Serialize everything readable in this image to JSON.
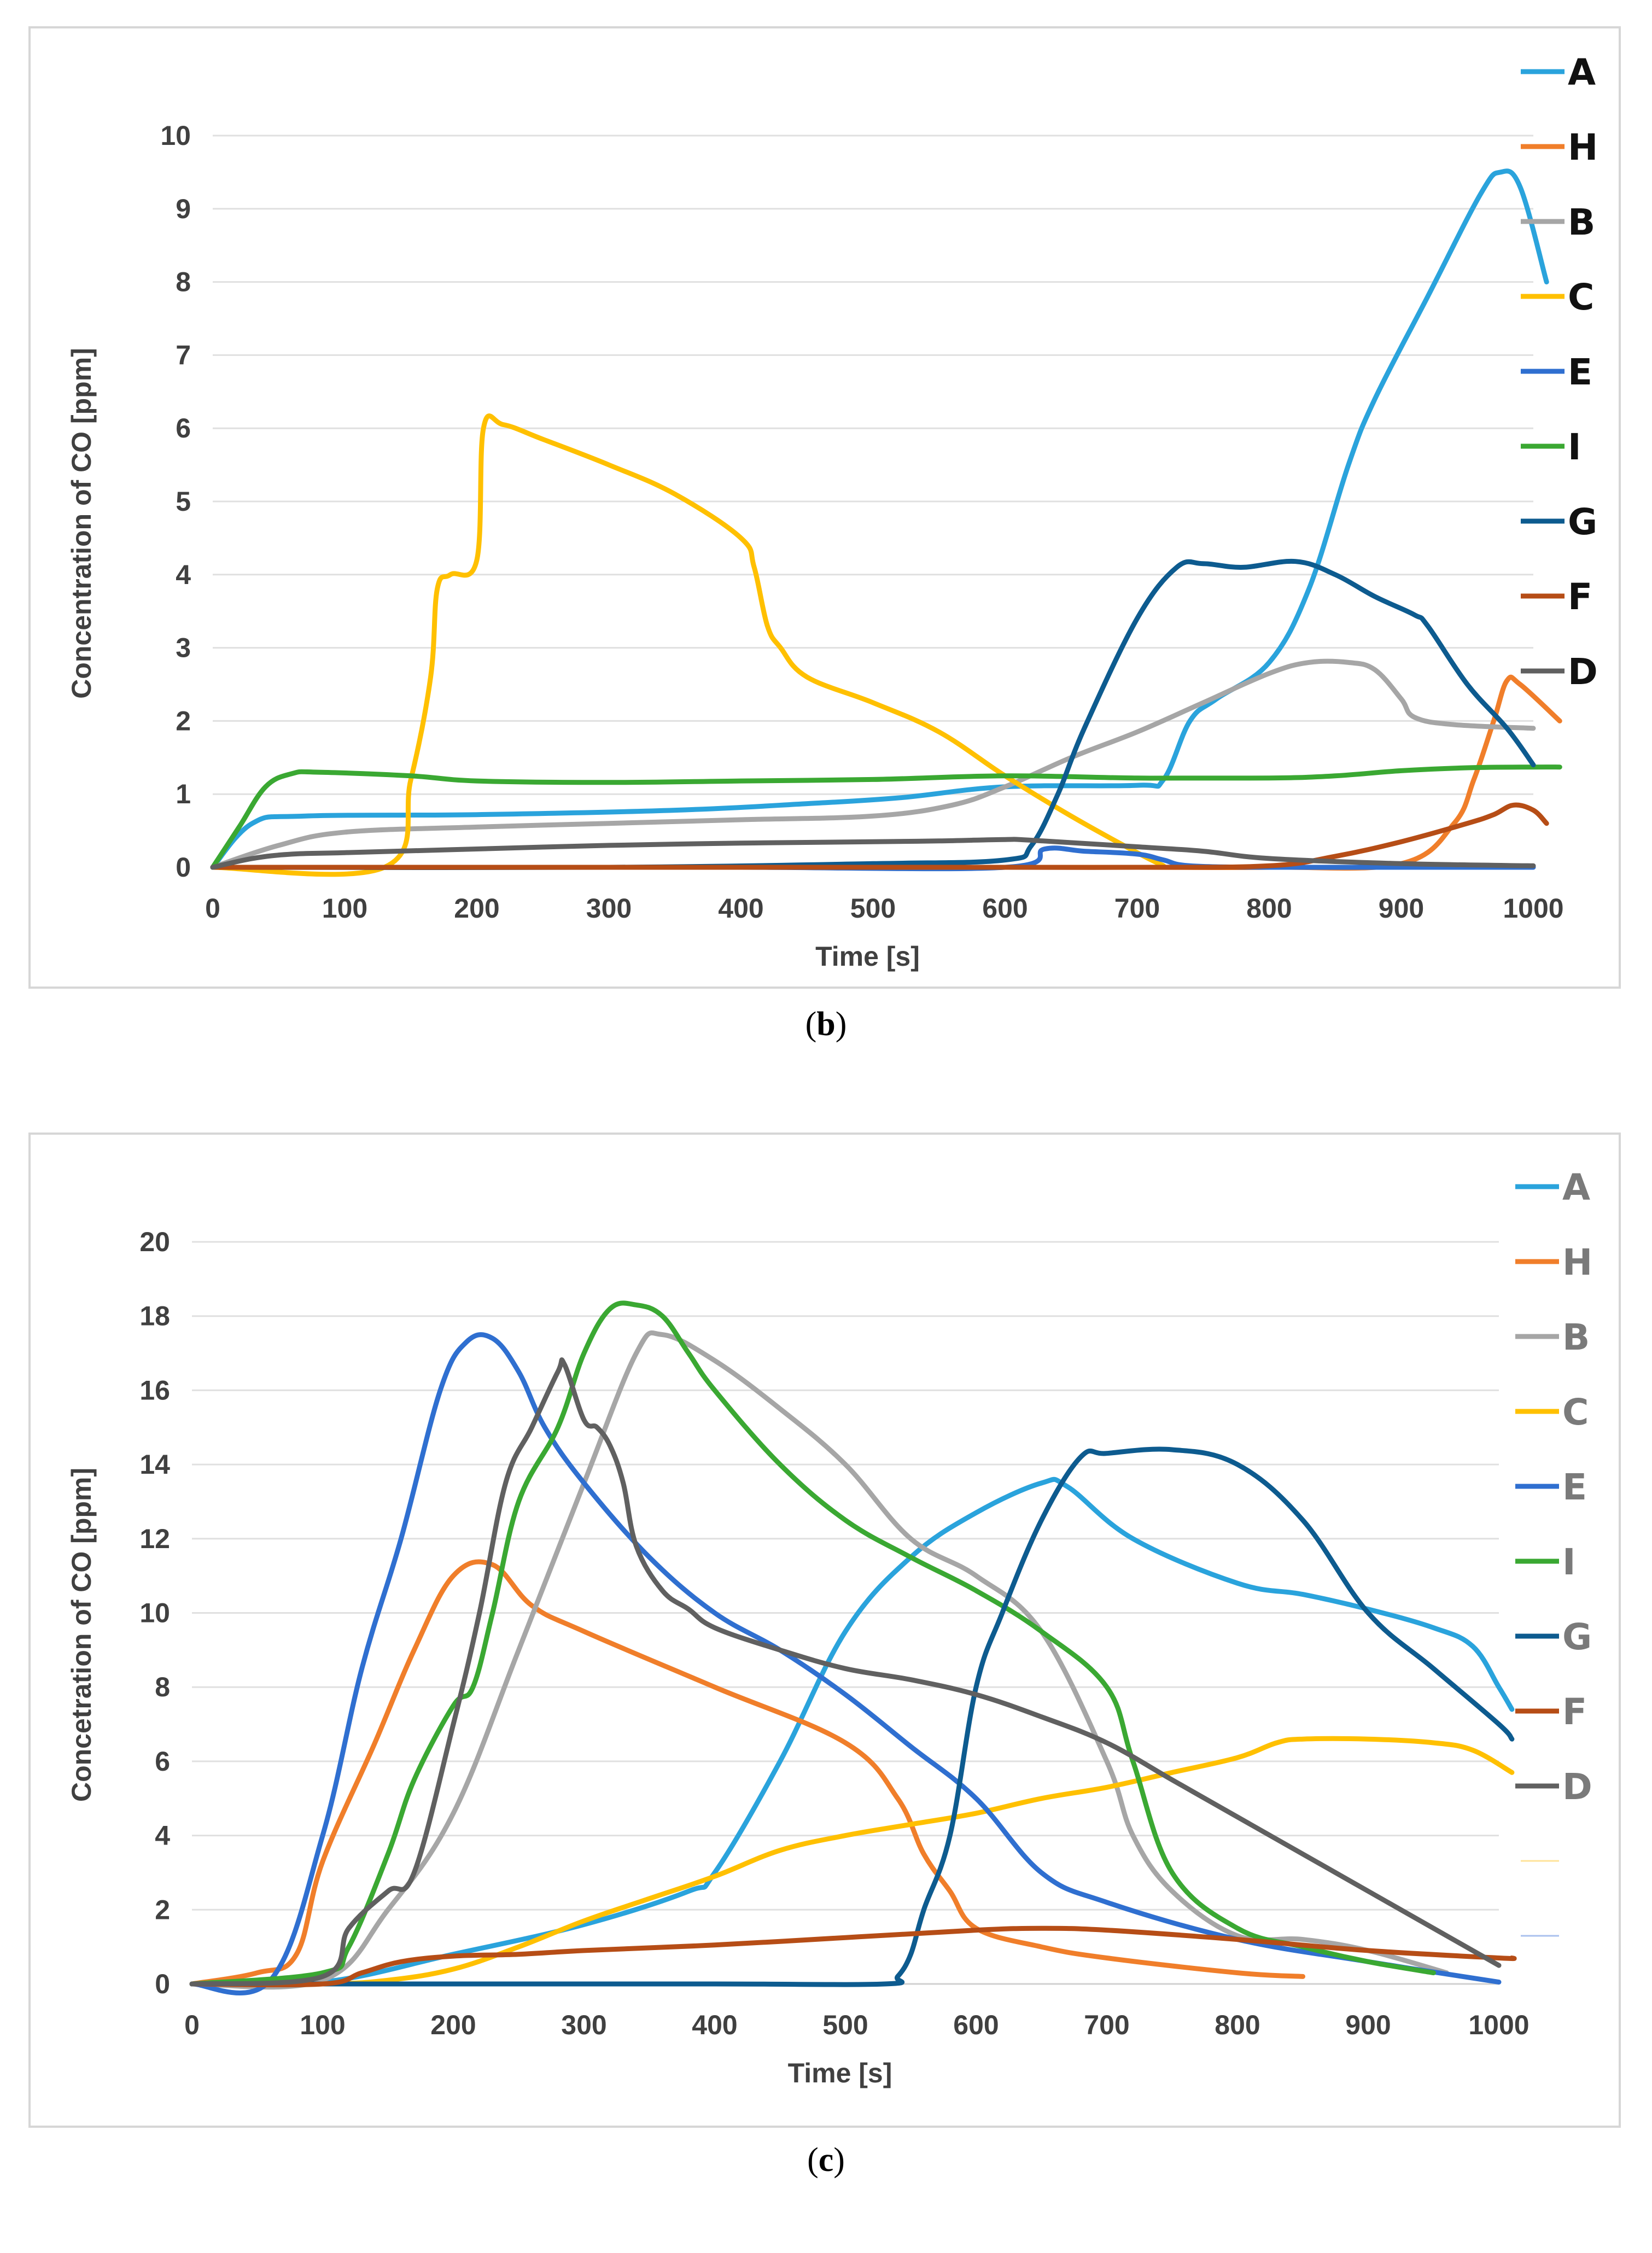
{
  "captions": {
    "b_paren_open": "(",
    "b_letter": "b",
    "b_paren_close": ")",
    "c_paren_open": "(",
    "c_letter": "c",
    "c_paren_close": ")"
  },
  "chart_data": [
    {
      "type": "line",
      "panel": "b",
      "title": "",
      "xlabel": "Time [s]",
      "ylabel": "Concentration of CO [ppm]",
      "xlim": [
        0,
        1000
      ],
      "ylim": [
        0,
        10
      ],
      "xticks": [
        "0",
        "100",
        "200",
        "300",
        "400",
        "500",
        "600",
        "700",
        "800",
        "900",
        "1000"
      ],
      "yticks": [
        "0",
        "1",
        "2",
        "3",
        "4",
        "5",
        "6",
        "7",
        "8",
        "9",
        "10"
      ],
      "grid": "horizontal",
      "legend_position": "right",
      "legend_color": "black",
      "series": [
        {
          "name": "A",
          "color": "#2aa3dc",
          "x": [
            0,
            30,
            70,
            200,
            350,
            450,
            520,
            600,
            700,
            720,
            740,
            760,
            800,
            830,
            860,
            880,
            920,
            960,
            975,
            990,
            1010
          ],
          "y": [
            0,
            0.6,
            0.7,
            0.72,
            0.78,
            0.87,
            0.95,
            1.1,
            1.12,
            1.2,
            2.0,
            2.3,
            2.8,
            3.8,
            5.5,
            6.4,
            7.8,
            9.2,
            9.5,
            9.3,
            8.0
          ]
        },
        {
          "name": "H",
          "color": "#f07e2a",
          "x": [
            0,
            100,
            200,
            300,
            400,
            500,
            600,
            700,
            800,
            900,
            940,
            955,
            970,
            980,
            990,
            1020
          ],
          "y": [
            0,
            0,
            0,
            0,
            0,
            0,
            0,
            0,
            0,
            0.05,
            0.6,
            1.2,
            2.0,
            2.55,
            2.5,
            2.0
          ]
        },
        {
          "name": "B",
          "color": "#a6a6a6",
          "x": [
            0,
            50,
            100,
            200,
            300,
            400,
            500,
            560,
            600,
            650,
            700,
            750,
            800,
            830,
            860,
            880,
            900,
            910,
            940,
            1000
          ],
          "y": [
            0,
            0.3,
            0.48,
            0.55,
            0.6,
            0.65,
            0.7,
            0.85,
            1.1,
            1.5,
            1.85,
            2.25,
            2.65,
            2.8,
            2.8,
            2.7,
            2.3,
            2.05,
            1.95,
            1.9
          ]
        },
        {
          "name": "C",
          "color": "#ffc000",
          "x": [
            0,
            130,
            150,
            165,
            170,
            180,
            200,
            205,
            220,
            250,
            300,
            350,
            400,
            410,
            420,
            430,
            450,
            500,
            550,
            600,
            650,
            700,
            720
          ],
          "y": [
            0,
            0,
            1.2,
            2.6,
            3.8,
            4.0,
            4.2,
            6.0,
            6.05,
            5.85,
            5.5,
            5.1,
            4.5,
            4.1,
            3.3,
            3.0,
            2.6,
            2.25,
            1.85,
            1.25,
            0.7,
            0.2,
            0.02
          ]
        },
        {
          "name": "E",
          "color": "#2f6fd0",
          "x": [
            0,
            200,
            400,
            600,
            630,
            660,
            700,
            720,
            740,
            800,
            900,
            1000
          ],
          "y": [
            0,
            0,
            0,
            0,
            0.25,
            0.22,
            0.18,
            0.1,
            0.02,
            0,
            0,
            0
          ]
        },
        {
          "name": "I",
          "color": "#3aa832",
          "x": [
            0,
            20,
            40,
            60,
            80,
            150,
            200,
            300,
            400,
            500,
            600,
            700,
            800,
            850,
            900,
            950,
            1000,
            1020
          ],
          "y": [
            0,
            0.55,
            1.1,
            1.28,
            1.3,
            1.25,
            1.18,
            1.16,
            1.18,
            1.2,
            1.25,
            1.22,
            1.22,
            1.25,
            1.32,
            1.36,
            1.37,
            1.37
          ]
        },
        {
          "name": "G",
          "color": "#0d5b8f",
          "x": [
            0,
            300,
            500,
            600,
            620,
            640,
            660,
            700,
            730,
            750,
            780,
            820,
            850,
            880,
            910,
            920,
            950,
            980,
            1000
          ],
          "y": [
            0,
            0,
            0.05,
            0.1,
            0.3,
            1.0,
            1.9,
            3.4,
            4.1,
            4.15,
            4.1,
            4.18,
            4.0,
            3.7,
            3.45,
            3.3,
            2.5,
            1.9,
            1.4
          ]
        },
        {
          "name": "F",
          "color": "#b64d16",
          "x": [
            0,
            200,
            400,
            600,
            700,
            800,
            850,
            900,
            950,
            970,
            985,
            1000,
            1010
          ],
          "y": [
            0,
            0,
            0,
            0,
            0,
            0.02,
            0.15,
            0.35,
            0.6,
            0.72,
            0.85,
            0.78,
            0.6
          ]
        },
        {
          "name": "D",
          "color": "#606060",
          "x": [
            0,
            30,
            60,
            100,
            200,
            300,
            400,
            500,
            550,
            600,
            620,
            700,
            750,
            800,
            900,
            1000
          ],
          "y": [
            0,
            0.12,
            0.18,
            0.2,
            0.25,
            0.3,
            0.33,
            0.35,
            0.36,
            0.38,
            0.37,
            0.28,
            0.22,
            0.12,
            0.05,
            0.02
          ]
        }
      ]
    },
    {
      "type": "line",
      "panel": "c",
      "title": "",
      "xlabel": "Time [s]",
      "ylabel": "Concetration of CO [ppm]",
      "xlim": [
        0,
        1000
      ],
      "ylim": [
        0,
        20
      ],
      "xticks": [
        "0",
        "100",
        "200",
        "300",
        "400",
        "500",
        "600",
        "700",
        "800",
        "900",
        "1000"
      ],
      "yticks": [
        "0",
        "2",
        "4",
        "6",
        "8",
        "10",
        "12",
        "14",
        "16",
        "18",
        "20"
      ],
      "grid": "horizontal",
      "legend_position": "right",
      "legend_color": "gray",
      "series": [
        {
          "name": "A",
          "color": "#2aa3dc",
          "x": [
            0,
            100,
            200,
            300,
            380,
            400,
            450,
            500,
            550,
            600,
            650,
            670,
            720,
            800,
            850,
            900,
            950,
            980,
            1000,
            1010
          ],
          "y": [
            0,
            0.05,
            0.8,
            1.6,
            2.5,
            3.0,
            6.0,
            9.5,
            11.5,
            12.7,
            13.5,
            13.4,
            12.0,
            10.8,
            10.5,
            10.1,
            9.6,
            9.1,
            8.0,
            7.4
          ]
        },
        {
          "name": "H",
          "color": "#f07e2a",
          "x": [
            0,
            50,
            80,
            100,
            140,
            170,
            200,
            230,
            260,
            300,
            400,
            500,
            540,
            560,
            580,
            600,
            650,
            700,
            800,
            850
          ],
          "y": [
            0,
            0.3,
            0.8,
            3.3,
            6.5,
            9.0,
            11.0,
            11.3,
            10.2,
            9.5,
            8.0,
            6.5,
            5.0,
            3.5,
            2.5,
            1.5,
            1.0,
            0.7,
            0.3,
            0.2
          ]
        },
        {
          "name": "B",
          "color": "#a6a6a6",
          "x": [
            0,
            100,
            150,
            200,
            250,
            300,
            340,
            360,
            400,
            450,
            500,
            550,
            600,
            650,
            700,
            720,
            750,
            800,
            850,
            900,
            960
          ],
          "y": [
            0,
            0.1,
            2.0,
            4.6,
            9.0,
            13.5,
            17.0,
            17.5,
            16.8,
            15.5,
            14.0,
            12.0,
            11.0,
            9.5,
            6.0,
            4.0,
            2.5,
            1.3,
            1.2,
            0.9,
            0.3
          ]
        },
        {
          "name": "C",
          "color": "#ffc000",
          "x": [
            0,
            100,
            150,
            200,
            250,
            300,
            350,
            400,
            450,
            500,
            550,
            600,
            650,
            700,
            750,
            800,
            830,
            850,
            900,
            950,
            980,
            1010
          ],
          "y": [
            0,
            0,
            0.1,
            0.4,
            1.0,
            1.7,
            2.3,
            2.9,
            3.6,
            4.0,
            4.3,
            4.6,
            5.0,
            5.3,
            5.7,
            6.1,
            6.5,
            6.6,
            6.6,
            6.5,
            6.3,
            5.7
          ]
        },
        {
          "name": "E",
          "color": "#2f6fd0",
          "x": [
            0,
            60,
            100,
            130,
            160,
            190,
            210,
            230,
            250,
            270,
            300,
            350,
            400,
            450,
            500,
            550,
            600,
            650,
            700,
            800,
            900,
            1000
          ],
          "y": [
            0,
            0.1,
            4.0,
            8.5,
            12.0,
            16.0,
            17.3,
            17.4,
            16.5,
            15.0,
            13.5,
            11.5,
            10.0,
            9.0,
            7.8,
            6.4,
            5.0,
            3.0,
            2.2,
            1.2,
            0.6,
            0.05
          ]
        },
        {
          "name": "I",
          "color": "#3aa832",
          "x": [
            0,
            100,
            120,
            150,
            170,
            200,
            215,
            230,
            250,
            280,
            300,
            320,
            340,
            360,
            380,
            400,
            450,
            500,
            550,
            600,
            650,
            700,
            720,
            750,
            800,
            850,
            900,
            950
          ],
          "y": [
            0,
            0.3,
            1.0,
            3.5,
            5.5,
            7.5,
            8.0,
            10.0,
            13.0,
            15.0,
            17.0,
            18.2,
            18.3,
            18.0,
            17.0,
            16.0,
            14.0,
            12.5,
            11.5,
            10.6,
            9.5,
            8.0,
            6.0,
            3.0,
            1.5,
            1.0,
            0.6,
            0.3
          ]
        },
        {
          "name": "G",
          "color": "#0d5b8f",
          "x": [
            0,
            200,
            400,
            530,
            540,
            550,
            560,
            580,
            600,
            620,
            650,
            680,
            700,
            750,
            800,
            850,
            900,
            950,
            1000,
            1010
          ],
          "y": [
            0,
            0,
            0,
            0,
            0.2,
            0.8,
            2.0,
            4.0,
            8.0,
            10.0,
            12.5,
            14.2,
            14.3,
            14.4,
            14.0,
            12.5,
            10.0,
            8.5,
            7.0,
            6.6
          ]
        },
        {
          "name": "F",
          "color": "#b64d16",
          "x": [
            0,
            100,
            130,
            160,
            200,
            250,
            300,
            400,
            500,
            600,
            650,
            700,
            800,
            900,
            1000,
            1010
          ],
          "y": [
            0,
            0,
            0.3,
            0.6,
            0.75,
            0.8,
            0.9,
            1.05,
            1.25,
            1.45,
            1.5,
            1.45,
            1.2,
            0.9,
            0.7,
            0.7
          ]
        },
        {
          "name": "D",
          "color": "#606060",
          "x": [
            0,
            100,
            120,
            150,
            170,
            200,
            220,
            240,
            260,
            280,
            285,
            300,
            310,
            320,
            330,
            340,
            360,
            380,
            400,
            450,
            500,
            550,
            600,
            650,
            700,
            750,
            800,
            900,
            1000
          ],
          "y": [
            0,
            0.2,
            1.5,
            2.5,
            3.0,
            7.0,
            10.0,
            13.5,
            15.0,
            16.5,
            16.7,
            15.2,
            15.0,
            14.5,
            13.5,
            11.8,
            10.6,
            10.1,
            9.6,
            9.0,
            8.5,
            8.2,
            7.8,
            7.2,
            6.5,
            5.5,
            4.5,
            2.5,
            0.5
          ]
        }
      ]
    }
  ]
}
